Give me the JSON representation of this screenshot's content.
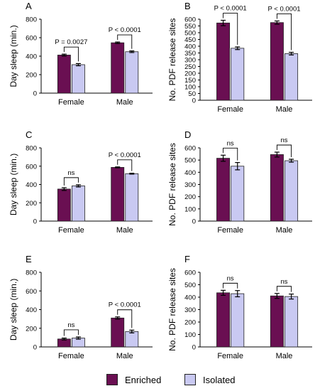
{
  "colors": {
    "enriched": "#6a0f52",
    "isolated": "#c9c9f2",
    "axis": "#000000"
  },
  "legend": {
    "enriched": "Enriched",
    "isolated": "Isolated"
  },
  "chart_data": [
    {
      "panel": "A",
      "type": "bar",
      "ylabel": "Day sleep (min.)",
      "ylim": [
        0,
        800
      ],
      "yticks": [
        0,
        200,
        400,
        600,
        800
      ],
      "categories": [
        "Female",
        "Male"
      ],
      "series": [
        {
          "name": "Enriched",
          "values": [
            412,
            545
          ],
          "errors": [
            10,
            8
          ]
        },
        {
          "name": "Isolated",
          "values": [
            308,
            448
          ],
          "errors": [
            12,
            9
          ]
        }
      ],
      "annotations": [
        "P = 0.0027",
        "P < 0.0001"
      ]
    },
    {
      "panel": "B",
      "type": "bar",
      "ylabel": "No. PDF release sites",
      "ylim": [
        0,
        600
      ],
      "yticks": [
        0,
        50,
        100,
        150,
        200,
        250,
        300,
        350,
        400,
        450,
        500,
        550,
        600
      ],
      "categories": [
        "Female",
        "Male"
      ],
      "series": [
        {
          "name": "Enriched",
          "values": [
            572,
            575
          ],
          "errors": [
            20,
            12
          ]
        },
        {
          "name": "Isolated",
          "values": [
            385,
            345
          ],
          "errors": [
            10,
            10
          ]
        }
      ],
      "annotations": [
        "P < 0.0001",
        "P < 0.0001"
      ]
    },
    {
      "panel": "C",
      "type": "bar",
      "ylabel": "Day sleep (min.)",
      "ylim": [
        0,
        800
      ],
      "yticks": [
        0,
        200,
        400,
        600,
        800
      ],
      "categories": [
        "Female",
        "Male"
      ],
      "series": [
        {
          "name": "Enriched",
          "values": [
            350,
            587
          ],
          "errors": [
            15,
            5
          ]
        },
        {
          "name": "Isolated",
          "values": [
            385,
            518
          ],
          "errors": [
            12,
            5
          ]
        }
      ],
      "annotations": [
        "ns",
        "P < 0.0001"
      ]
    },
    {
      "panel": "D",
      "type": "bar",
      "ylabel": "No. PDF release sites",
      "ylim": [
        0,
        600
      ],
      "yticks": [
        0,
        100,
        200,
        300,
        400,
        500,
        600
      ],
      "categories": [
        "Female",
        "Male"
      ],
      "series": [
        {
          "name": "Enriched",
          "values": [
            515,
            545
          ],
          "errors": [
            25,
            20
          ]
        },
        {
          "name": "Isolated",
          "values": [
            450,
            495
          ],
          "errors": [
            30,
            12
          ]
        }
      ],
      "annotations": [
        "ns",
        "ns"
      ]
    },
    {
      "panel": "E",
      "type": "bar",
      "ylabel": "Day sleep (min.)",
      "ylim": [
        0,
        800
      ],
      "yticks": [
        0,
        200,
        400,
        600,
        800
      ],
      "categories": [
        "Female",
        "Male"
      ],
      "series": [
        {
          "name": "Enriched",
          "values": [
            85,
            310
          ],
          "errors": [
            10,
            12
          ]
        },
        {
          "name": "Isolated",
          "values": [
            95,
            165
          ],
          "errors": [
            12,
            15
          ]
        }
      ],
      "annotations": [
        "ns",
        "P < 0.0001"
      ]
    },
    {
      "panel": "F",
      "type": "bar",
      "ylabel": "No. PDF release sites",
      "ylim": [
        0,
        600
      ],
      "yticks": [
        0,
        100,
        200,
        300,
        400,
        500,
        600
      ],
      "categories": [
        "Female",
        "Male"
      ],
      "series": [
        {
          "name": "Enriched",
          "values": [
            435,
            410
          ],
          "errors": [
            20,
            20
          ]
        },
        {
          "name": "Isolated",
          "values": [
            428,
            405
          ],
          "errors": [
            25,
            20
          ]
        }
      ],
      "annotations": [
        "ns",
        "ns"
      ]
    }
  ]
}
